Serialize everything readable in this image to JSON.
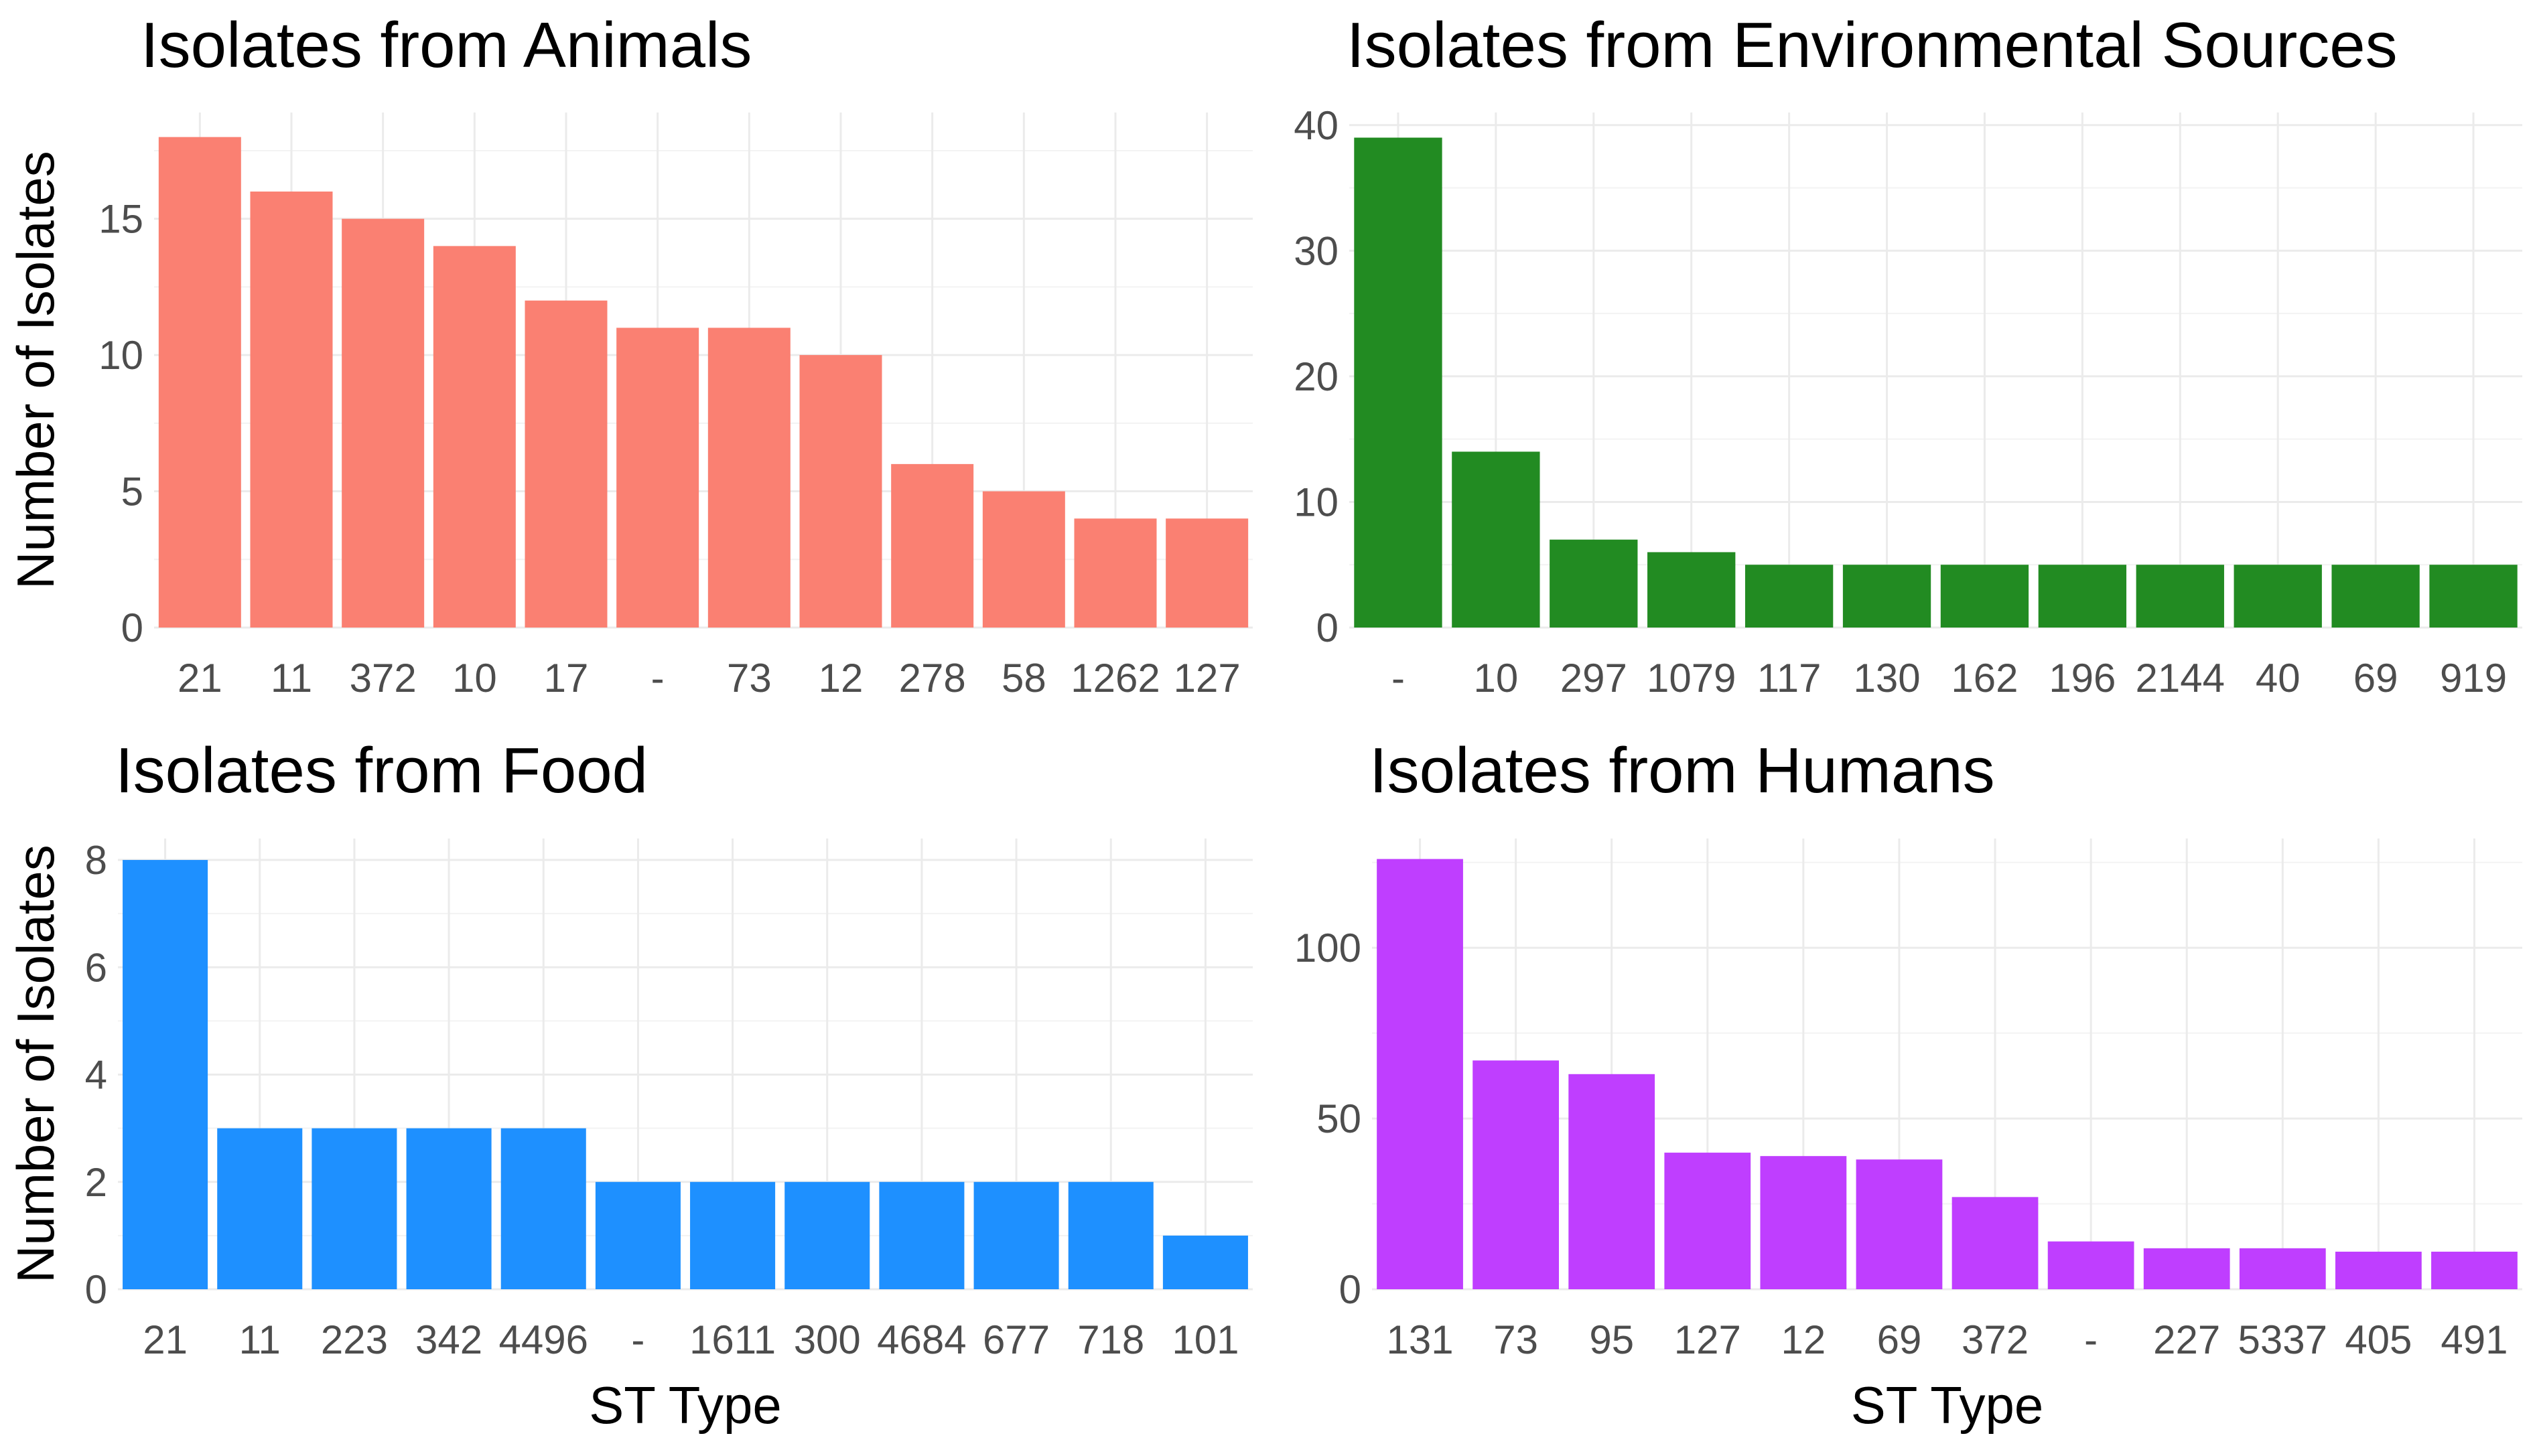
{
  "figure": {
    "x_axis_title": "ST Type",
    "y_axis_title": "Number of Isolates"
  },
  "chart_data": [
    {
      "type": "bar",
      "title": "Isolates from Animals",
      "categories": [
        "21",
        "11",
        "372",
        "10",
        "17",
        "-",
        "73",
        "12",
        "278",
        "58",
        "1262",
        "127"
      ],
      "values": [
        18,
        16,
        15,
        14,
        12,
        11,
        11,
        10,
        6,
        5,
        4,
        4
      ],
      "ylim": [
        0,
        18.9
      ],
      "yticks": [
        0,
        5,
        10,
        15
      ],
      "ylabel": "Number of Isolates",
      "xlabel": "",
      "color": "#FA8072",
      "grid": true
    },
    {
      "type": "bar",
      "title": "Isolates from Environmental Sources",
      "categories": [
        "-",
        "10",
        "297",
        "1079",
        "117",
        "130",
        "162",
        "196",
        "2144",
        "40",
        "69",
        "919"
      ],
      "values": [
        39,
        14,
        7,
        6,
        5,
        5,
        5,
        5,
        5,
        5,
        5,
        5
      ],
      "ylim": [
        0,
        41
      ],
      "yticks": [
        0,
        10,
        20,
        30,
        40
      ],
      "ylabel": "",
      "xlabel": "",
      "color": "#228B22",
      "grid": true
    },
    {
      "type": "bar",
      "title": "Isolates from Food",
      "categories": [
        "21",
        "11",
        "223",
        "342",
        "4496",
        "-",
        "1611",
        "300",
        "4684",
        "677",
        "718",
        "101"
      ],
      "values": [
        8,
        3,
        3,
        3,
        3,
        2,
        2,
        2,
        2,
        2,
        2,
        1
      ],
      "ylim": [
        0,
        8.4
      ],
      "yticks": [
        0,
        2,
        4,
        6,
        8
      ],
      "ylabel": "Number of Isolates",
      "xlabel": "ST Type",
      "color": "#1E90FF",
      "grid": true
    },
    {
      "type": "bar",
      "title": "Isolates from Humans",
      "categories": [
        "131",
        "73",
        "95",
        "127",
        "12",
        "69",
        "372",
        "-",
        "227",
        "5337",
        "405",
        "491"
      ],
      "values": [
        126,
        67,
        63,
        40,
        39,
        38,
        27,
        14,
        12,
        12,
        11,
        11
      ],
      "ylim": [
        0,
        132
      ],
      "yticks": [
        0,
        50,
        100
      ],
      "ylabel": "",
      "xlabel": "ST Type",
      "color": "#BF3EFF",
      "grid": true
    }
  ]
}
